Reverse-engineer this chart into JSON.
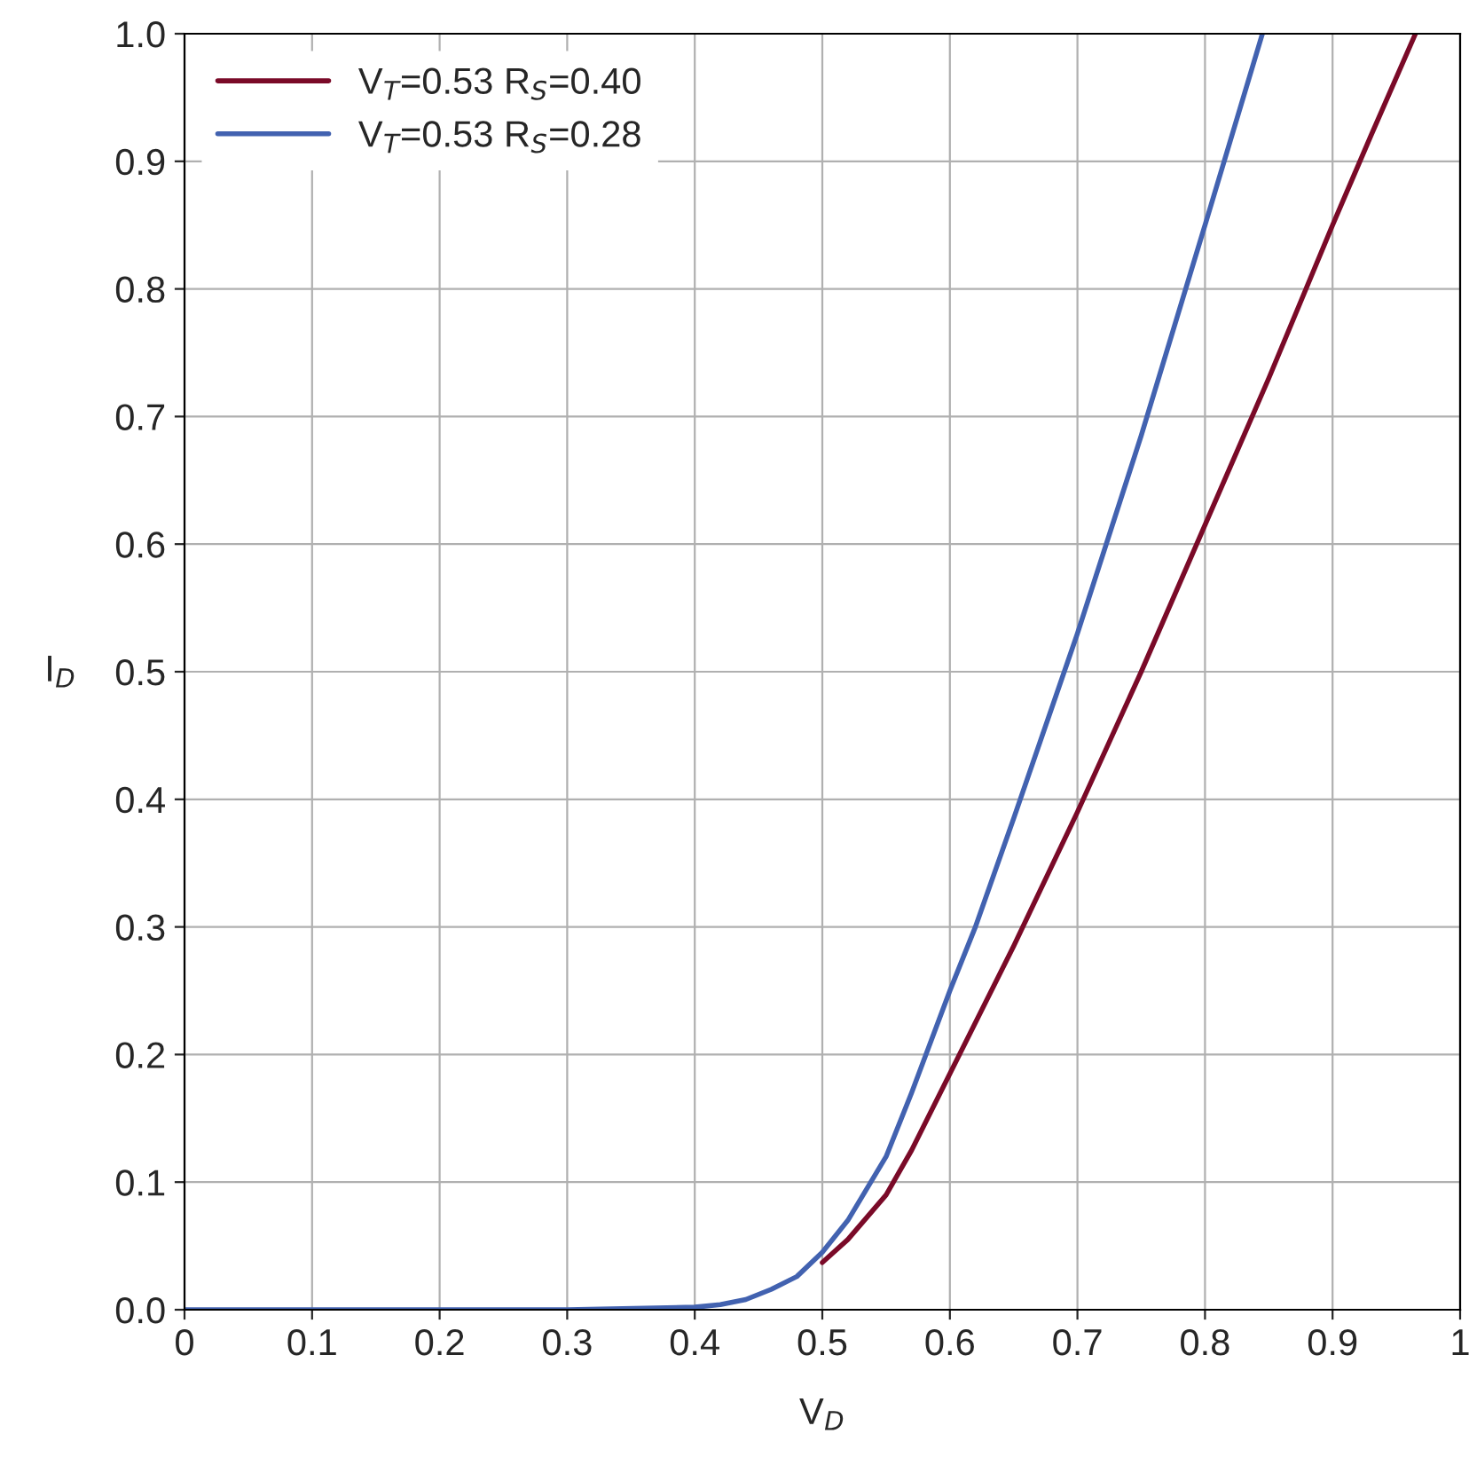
{
  "chart_data": {
    "type": "line",
    "xlabel": "V$_{D}$",
    "ylabel": "I$_{D}$",
    "xlim": [
      0,
      1
    ],
    "ylim": [
      0,
      1
    ],
    "xticks": [
      0,
      0.1,
      0.2,
      0.3,
      0.4,
      0.5,
      0.6,
      0.7,
      0.8,
      0.9,
      1
    ],
    "yticks": [
      {
        "value": 0,
        "label": "0.0"
      },
      0.1,
      0.2,
      0.3,
      0.4,
      0.5,
      0.6,
      0.7,
      0.8,
      0.9,
      {
        "value": 1,
        "label": "1.0"
      }
    ],
    "grid": true,
    "legend": "top left",
    "marker": "none",
    "line_style": "solid",
    "series": [
      {
        "name": "V$_{T}$=0.53 R$_{S}$=0.40",
        "color": "#7a0a28",
        "x": [
          0.5,
          0.52,
          0.55,
          0.57,
          0.6,
          0.62,
          0.65,
          0.7,
          0.75,
          0.8,
          0.85,
          0.9,
          0.93,
          0.965
        ],
        "values": [
          0.037,
          0.055,
          0.09,
          0.125,
          0.185,
          0.225,
          0.285,
          0.39,
          0.5,
          0.615,
          0.73,
          0.85,
          0.92,
          1.0
        ]
      },
      {
        "name": "V$_{T}$=0.53 R$_{S}$=0.28",
        "color": "#4262b0",
        "x": [
          0,
          0.3,
          0.4,
          0.42,
          0.44,
          0.46,
          0.48,
          0.5,
          0.52,
          0.55,
          0.57,
          0.6,
          0.62,
          0.65,
          0.7,
          0.75,
          0.8,
          0.845
        ],
        "values": [
          0,
          0,
          0.002,
          0.004,
          0.008,
          0.016,
          0.026,
          0.045,
          0.07,
          0.12,
          0.17,
          0.25,
          0.3,
          0.385,
          0.53,
          0.685,
          0.85,
          1.0
        ]
      }
    ]
  }
}
